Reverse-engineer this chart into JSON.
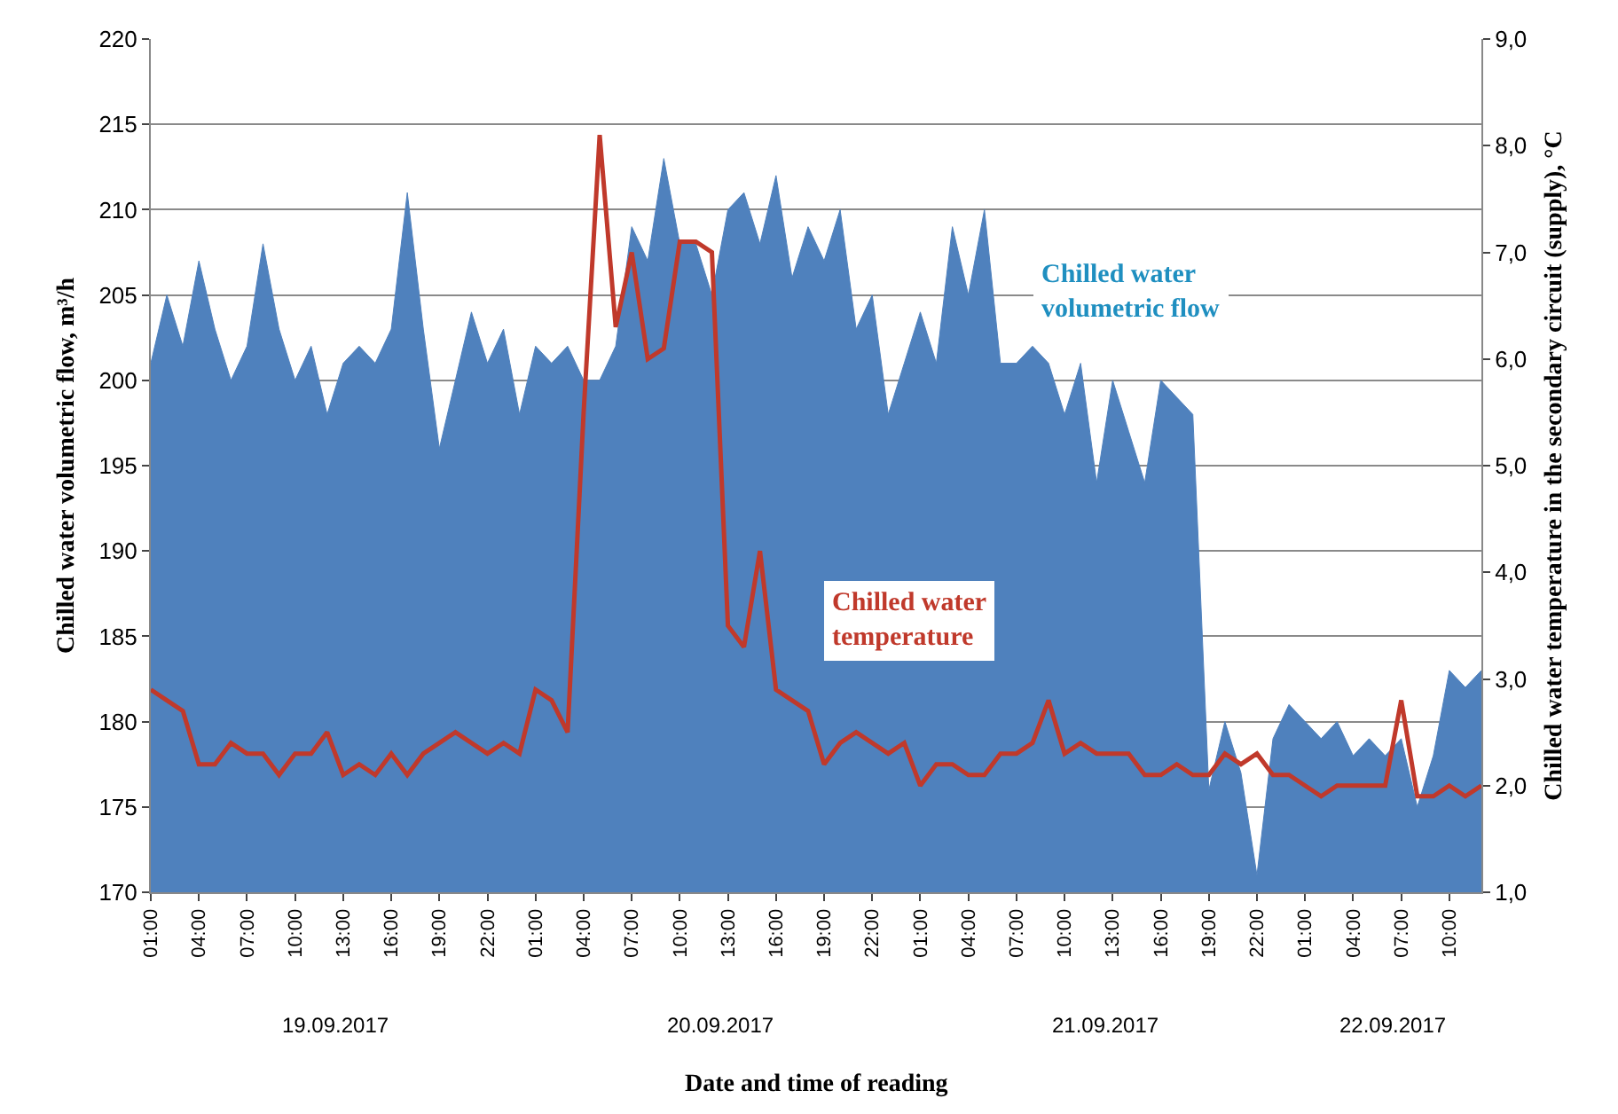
{
  "chart_data": {
    "type": "area",
    "xlabel": "Date and time of reading",
    "ylabel": "Chilled water volumetric flow, m³/h",
    "y2label": "Chilled water temperature in the secondary circuit (supply), °C",
    "x": [
      "2017-09-19T01:00",
      "2017-09-19T02:00",
      "2017-09-19T03:00",
      "2017-09-19T04:00",
      "2017-09-19T05:00",
      "2017-09-19T06:00",
      "2017-09-19T07:00",
      "2017-09-19T08:00",
      "2017-09-19T09:00",
      "2017-09-19T10:00",
      "2017-09-19T11:00",
      "2017-09-19T12:00",
      "2017-09-19T13:00",
      "2017-09-19T14:00",
      "2017-09-19T15:00",
      "2017-09-19T16:00",
      "2017-09-19T17:00",
      "2017-09-19T18:00",
      "2017-09-19T19:00",
      "2017-09-19T20:00",
      "2017-09-19T21:00",
      "2017-09-19T22:00",
      "2017-09-19T23:00",
      "2017-09-20T00:00",
      "2017-09-20T01:00",
      "2017-09-20T02:00",
      "2017-09-20T03:00",
      "2017-09-20T04:00",
      "2017-09-20T05:00",
      "2017-09-20T06:00",
      "2017-09-20T07:00",
      "2017-09-20T08:00",
      "2017-09-20T09:00",
      "2017-09-20T10:00",
      "2017-09-20T11:00",
      "2017-09-20T12:00",
      "2017-09-20T13:00",
      "2017-09-20T14:00",
      "2017-09-20T15:00",
      "2017-09-20T16:00",
      "2017-09-20T17:00",
      "2017-09-20T18:00",
      "2017-09-20T19:00",
      "2017-09-20T20:00",
      "2017-09-20T21:00",
      "2017-09-20T22:00",
      "2017-09-20T23:00",
      "2017-09-21T00:00",
      "2017-09-21T01:00",
      "2017-09-21T02:00",
      "2017-09-21T03:00",
      "2017-09-21T04:00",
      "2017-09-21T05:00",
      "2017-09-21T06:00",
      "2017-09-21T07:00",
      "2017-09-21T08:00",
      "2017-09-21T09:00",
      "2017-09-21T10:00",
      "2017-09-21T11:00",
      "2017-09-21T12:00",
      "2017-09-21T13:00",
      "2017-09-21T14:00",
      "2017-09-21T15:00",
      "2017-09-21T16:00",
      "2017-09-21T17:00",
      "2017-09-21T18:00",
      "2017-09-21T19:00",
      "2017-09-21T20:00",
      "2017-09-21T21:00",
      "2017-09-21T22:00",
      "2017-09-21T23:00",
      "2017-09-22T00:00",
      "2017-09-22T01:00",
      "2017-09-22T02:00",
      "2017-09-22T03:00",
      "2017-09-22T04:00",
      "2017-09-22T05:00",
      "2017-09-22T06:00",
      "2017-09-22T07:00",
      "2017-09-22T08:00",
      "2017-09-22T09:00",
      "2017-09-22T10:00",
      "2017-09-22T11:00",
      "2017-09-22T12:00"
    ],
    "series": [
      {
        "name": "Chilled water volumetric flow",
        "color": "#4f81bd",
        "values": [
          201,
          205,
          202,
          207,
          203,
          200,
          202,
          208,
          203,
          200,
          202,
          198,
          201,
          202,
          201,
          203,
          211,
          203,
          196,
          200,
          204,
          201,
          203,
          198,
          202,
          201,
          202,
          200,
          200,
          202,
          209,
          207,
          213,
          208,
          208,
          205,
          210,
          211,
          208,
          212,
          206,
          209,
          207,
          210,
          203,
          205,
          198,
          201,
          204,
          201,
          209,
          205,
          210,
          201,
          201,
          202,
          201,
          198,
          201,
          194,
          200,
          197,
          194,
          200,
          199,
          198,
          176,
          180,
          177,
          171,
          179,
          181,
          180,
          179,
          180,
          178,
          179,
          178,
          179,
          175,
          178,
          183,
          182,
          183
        ]
      },
      {
        "name": "Chilled water temperature",
        "type": "line",
        "axis": "y2",
        "color": "#c0392b",
        "values": [
          2.9,
          2.8,
          2.7,
          2.2,
          2.2,
          2.4,
          2.3,
          2.3,
          2.1,
          2.3,
          2.3,
          2.5,
          2.1,
          2.2,
          2.1,
          2.3,
          2.1,
          2.3,
          2.4,
          2.5,
          2.4,
          2.3,
          2.4,
          2.3,
          2.9,
          2.8,
          2.5,
          5.5,
          8.1,
          6.3,
          7.0,
          6.0,
          6.1,
          7.1,
          7.1,
          7.0,
          3.5,
          3.3,
          4.2,
          2.9,
          2.8,
          2.7,
          2.2,
          2.4,
          2.5,
          2.4,
          2.3,
          2.4,
          2.0,
          2.2,
          2.2,
          2.1,
          2.1,
          2.3,
          2.3,
          2.4,
          2.8,
          2.3,
          2.4,
          2.3,
          2.3,
          2.3,
          2.1,
          2.1,
          2.2,
          2.1,
          2.1,
          2.3,
          2.2,
          2.3,
          2.1,
          2.1,
          2.0,
          1.9,
          2.0,
          2.0,
          2.0,
          2.0,
          2.8,
          1.9,
          1.9,
          2.0,
          1.9,
          2.0
        ]
      }
    ],
    "xlim": [
      "2017-09-19T01:00",
      "2017-09-22T12:00"
    ],
    "xticks": [
      {
        "value": "2017-09-19T01:00",
        "label": "01:00"
      },
      {
        "value": "2017-09-19T04:00",
        "label": "04:00"
      },
      {
        "value": "2017-09-19T07:00",
        "label": "07:00"
      },
      {
        "value": "2017-09-19T10:00",
        "label": "10:00"
      },
      {
        "value": "2017-09-19T13:00",
        "label": "13:00"
      },
      {
        "value": "2017-09-19T16:00",
        "label": "16:00"
      },
      {
        "value": "2017-09-19T19:00",
        "label": "19:00"
      },
      {
        "value": "2017-09-19T22:00",
        "label": "22:00"
      },
      {
        "value": "2017-09-20T01:00",
        "label": "01:00"
      },
      {
        "value": "2017-09-20T04:00",
        "label": "04:00"
      },
      {
        "value": "2017-09-20T07:00",
        "label": "07:00"
      },
      {
        "value": "2017-09-20T10:00",
        "label": "10:00"
      },
      {
        "value": "2017-09-20T13:00",
        "label": "13:00"
      },
      {
        "value": "2017-09-20T16:00",
        "label": "16:00"
      },
      {
        "value": "2017-09-20T19:00",
        "label": "19:00"
      },
      {
        "value": "2017-09-20T22:00",
        "label": "22:00"
      },
      {
        "value": "2017-09-21T01:00",
        "label": "01:00"
      },
      {
        "value": "2017-09-21T04:00",
        "label": "04:00"
      },
      {
        "value": "2017-09-21T07:00",
        "label": "07:00"
      },
      {
        "value": "2017-09-21T10:00",
        "label": "10:00"
      },
      {
        "value": "2017-09-21T13:00",
        "label": "13:00"
      },
      {
        "value": "2017-09-21T16:00",
        "label": "16:00"
      },
      {
        "value": "2017-09-21T19:00",
        "label": "19:00"
      },
      {
        "value": "2017-09-21T22:00",
        "label": "22:00"
      },
      {
        "value": "2017-09-22T01:00",
        "label": "01:00"
      },
      {
        "value": "2017-09-22T04:00",
        "label": "04:00"
      },
      {
        "value": "2017-09-22T07:00",
        "label": "07:00"
      },
      {
        "value": "2017-09-22T10:00",
        "label": "10:00"
      }
    ],
    "ylim": [
      170,
      220
    ],
    "yticks": [
      170,
      175,
      180,
      185,
      190,
      195,
      200,
      205,
      210,
      215,
      220
    ],
    "y2lim": [
      1,
      9
    ],
    "y2ticks": [
      {
        "value": 1,
        "label": "1,0"
      },
      {
        "value": 2,
        "label": "2,0"
      },
      {
        "value": 3,
        "label": "3,0"
      },
      {
        "value": 4,
        "label": "4,0"
      },
      {
        "value": 5,
        "label": "5,0"
      },
      {
        "value": 6,
        "label": "6,0"
      },
      {
        "value": 7,
        "label": "7,0"
      },
      {
        "value": 8,
        "label": "8,0"
      },
      {
        "value": 9,
        "label": "9,0"
      }
    ],
    "annotations": [
      "19.09.2017",
      "20.09.2017",
      "21.09.2017",
      "22.09.2017"
    ],
    "grid": "y",
    "legend": false
  }
}
